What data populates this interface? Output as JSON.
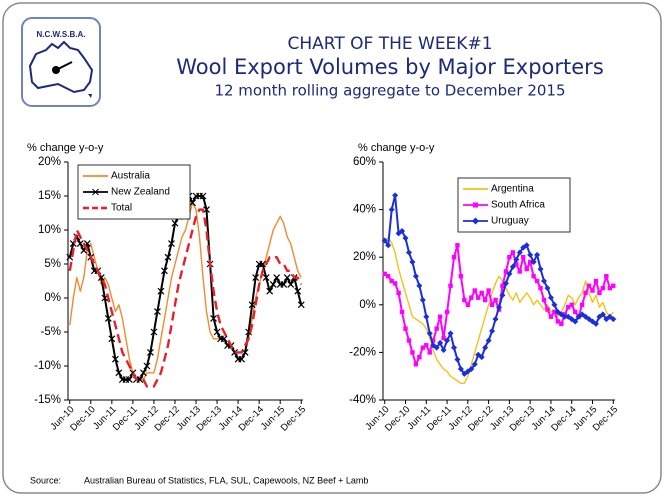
{
  "header": {
    "logo_text": "N.C.W.S.B.A.",
    "title": "CHART OF THE WEEK#1",
    "subtitle": "Wool Export Volumes by Major Exporters",
    "note": "12 month rolling aggregate to December 2015"
  },
  "source": {
    "label": "Source:",
    "text": "Australian Bureau of Statistics, FLA, SUL, Capewools, NZ Beef + Lamb"
  },
  "chart_data": [
    {
      "type": "line",
      "y_label": "% change y-o-y",
      "legend": "upper left",
      "categories": [
        "Jun-10",
        null,
        null,
        null,
        null,
        null,
        "Dec-10",
        null,
        null,
        null,
        null,
        null,
        "Jun-11",
        null,
        null,
        null,
        null,
        null,
        "Dec-11",
        null,
        null,
        null,
        null,
        null,
        "Jun-12",
        null,
        null,
        null,
        null,
        null,
        "Dec-12",
        null,
        null,
        null,
        null,
        null,
        "Jun-13",
        null,
        null,
        null,
        null,
        null,
        "Dec-13",
        null,
        null,
        null,
        null,
        null,
        "Jun-14",
        null,
        null,
        null,
        null,
        null,
        "Dec-14",
        null,
        null,
        null,
        null,
        null,
        "Jun-15",
        null,
        null,
        null,
        null,
        null,
        "Dec-15"
      ],
      "ylim": [
        -15,
        20
      ],
      "yticks": [
        {
          "value": 20,
          "label": "20%"
        },
        {
          "value": 15,
          "label": "15%"
        },
        {
          "value": 10,
          "label": "10%"
        },
        {
          "value": 5,
          "label": "5%"
        },
        {
          "value": 0,
          "label": "0%"
        },
        {
          "value": -5,
          "label": "-5%"
        },
        {
          "value": -10,
          "label": "-10%"
        },
        {
          "value": -15,
          "label": "-15%"
        }
      ],
      "series": [
        {
          "name": "Australia",
          "color": "#f28a2e",
          "style": "solid",
          "marker": "none",
          "values": [
            -4,
            0,
            3,
            1,
            3,
            7,
            8,
            6,
            4,
            2,
            3,
            2,
            0,
            -2,
            -1,
            -3,
            -6,
            -9,
            -11,
            -12,
            -12,
            -12,
            -11,
            -11,
            -11,
            -9,
            -6,
            -3,
            0,
            3,
            5,
            7,
            9,
            10,
            12,
            14,
            13,
            9,
            3,
            -2,
            -5,
            -6,
            -6,
            -6,
            -6,
            -7,
            -7,
            -8,
            -9,
            -9,
            -8,
            -6,
            -3,
            0,
            2,
            4,
            6,
            8,
            10,
            11,
            12,
            11,
            9,
            8,
            6,
            4,
            3
          ]
        },
        {
          "name": "New Zealand",
          "color": "#000000",
          "style": "solid",
          "marker": "x",
          "values": [
            6,
            8,
            9,
            8,
            7,
            8,
            6,
            4,
            4,
            3,
            0,
            -3,
            -6,
            -9,
            -11,
            -12,
            -12,
            -12,
            -11,
            -12,
            -12,
            -11,
            -10,
            -8,
            -5,
            -2,
            1,
            4,
            6,
            8,
            11,
            12,
            14,
            15,
            15,
            14,
            15,
            15,
            15,
            13,
            5,
            -3,
            -5,
            -6,
            -6,
            -7,
            -7,
            -8,
            -9,
            -9,
            -8,
            -5,
            -1,
            3,
            5,
            5,
            3,
            1,
            2,
            3,
            2,
            2,
            3,
            2,
            3,
            1,
            -1
          ]
        },
        {
          "name": "Total",
          "color": "#e8202a",
          "style": "dashed",
          "marker": "none",
          "values": [
            4,
            7,
            10,
            9,
            8,
            7,
            6,
            5,
            4,
            3,
            2,
            0,
            -2,
            -4,
            -6,
            -8,
            -9,
            -10,
            -11,
            -12,
            -12,
            -12,
            -13,
            -13,
            -13,
            -12,
            -11,
            -9,
            -7,
            -4,
            -1,
            2,
            4,
            6,
            8,
            10,
            12,
            13,
            13,
            10,
            5,
            1,
            -2,
            -4,
            -5,
            -6,
            -7,
            -8,
            -8,
            -8,
            -7,
            -6,
            -4,
            -1,
            2,
            4,
            5,
            6,
            6,
            6,
            5,
            5,
            4,
            4,
            3,
            3,
            2
          ]
        }
      ]
    },
    {
      "type": "line",
      "y_label": "% change y-o-y",
      "legend": "upper center",
      "categories": [
        "Jun-10",
        null,
        null,
        null,
        null,
        null,
        "Dec-10",
        null,
        null,
        null,
        null,
        null,
        "Jun-11",
        null,
        null,
        null,
        null,
        null,
        "Dec-11",
        null,
        null,
        null,
        null,
        null,
        "Jun-12",
        null,
        null,
        null,
        null,
        null,
        "Dec-12",
        null,
        null,
        null,
        null,
        null,
        "Jun-13",
        null,
        null,
        null,
        null,
        null,
        "Dec-13",
        null,
        null,
        null,
        null,
        null,
        "Jun-14",
        null,
        null,
        null,
        null,
        null,
        "Dec-14",
        null,
        null,
        null,
        null,
        null,
        "Jun-15",
        null,
        null,
        null,
        null,
        null,
        "Dec-15"
      ],
      "ylim": [
        -40,
        60
      ],
      "yticks": [
        {
          "value": 60,
          "label": "60%"
        },
        {
          "value": 40,
          "label": "40%"
        },
        {
          "value": 20,
          "label": "20%"
        },
        {
          "value": 0,
          "label": "0%"
        },
        {
          "value": -20,
          "label": "-20%"
        },
        {
          "value": -40,
          "label": "-40%"
        }
      ],
      "series": [
        {
          "name": "Argentina",
          "color": "#f2c31a",
          "style": "solid",
          "marker": "none",
          "values": [
            27,
            28,
            26,
            22,
            15,
            10,
            5,
            0,
            -5,
            -6,
            -7,
            -8,
            -10,
            -14,
            -19,
            -23,
            -25,
            -27,
            -28,
            -30,
            -31,
            -32,
            -33,
            -33,
            -30,
            -25,
            -20,
            -15,
            -10,
            -5,
            0,
            5,
            9,
            12,
            10,
            7,
            4,
            2,
            5,
            1,
            3,
            5,
            3,
            0,
            2,
            0,
            -2,
            0,
            -3,
            -2,
            -5,
            -3,
            0,
            4,
            3,
            0,
            3,
            5,
            10,
            5,
            1,
            4,
            -1,
            1,
            -3,
            -5,
            -3
          ]
        },
        {
          "name": "South Africa",
          "color": "#ff00ff",
          "style": "solid",
          "marker": "square",
          "values": [
            13,
            12,
            10,
            9,
            5,
            -3,
            -10,
            -15,
            -20,
            -25,
            -22,
            -18,
            -17,
            -20,
            -15,
            -10,
            -5,
            -14,
            -3,
            8,
            20,
            25,
            12,
            2,
            0,
            3,
            6,
            3,
            5,
            2,
            6,
            0,
            2,
            -2,
            8,
            14,
            20,
            22,
            17,
            14,
            20,
            15,
            18,
            12,
            10,
            7,
            2,
            -2,
            -5,
            -3,
            -7,
            -8,
            -4,
            -1,
            0,
            -3,
            -5,
            0,
            5,
            8,
            6,
            10,
            5,
            7,
            12,
            7,
            8
          ]
        },
        {
          "name": "Uruguay",
          "color": "#1a2fd8",
          "style": "solid",
          "marker": "diamond",
          "values": [
            27,
            25,
            40,
            46,
            30,
            31,
            28,
            22,
            18,
            12,
            8,
            2,
            -5,
            -12,
            -17,
            -18,
            -16,
            -19,
            -15,
            -12,
            -18,
            -23,
            -27,
            -29,
            -28,
            -27,
            -25,
            -21,
            -22,
            -18,
            -15,
            -11,
            -6,
            -1,
            4,
            9,
            13,
            16,
            19,
            22,
            24,
            25,
            21,
            18,
            21,
            15,
            10,
            7,
            3,
            0,
            -3,
            -4,
            -5,
            -5,
            -6,
            -7,
            -5,
            -4,
            -5,
            -6,
            -7,
            -8,
            -5,
            -4,
            -6,
            -5,
            -6
          ]
        }
      ]
    }
  ]
}
